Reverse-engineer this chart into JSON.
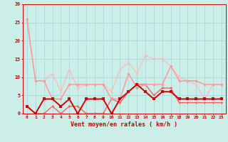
{
  "x": [
    0,
    1,
    2,
    3,
    4,
    5,
    6,
    7,
    8,
    9,
    10,
    11,
    12,
    13,
    14,
    15,
    16,
    17,
    18,
    19,
    20,
    21,
    22,
    23
  ],
  "line1_y": [
    26,
    9,
    9,
    4,
    4,
    8,
    8,
    8,
    8,
    8,
    4,
    4,
    11,
    7,
    8,
    8,
    8,
    13,
    9,
    9,
    9,
    8,
    8,
    8
  ],
  "line2_y": [
    2,
    0,
    4,
    4,
    2,
    4,
    0,
    4,
    4,
    4,
    0,
    4,
    6,
    8,
    6,
    4,
    6,
    6,
    4,
    4,
    4,
    4,
    4,
    4
  ],
  "line3_y": [
    25,
    9,
    9,
    11,
    6,
    12,
    7,
    8,
    8,
    8,
    6,
    12,
    14,
    11,
    16,
    15,
    15,
    13,
    10,
    9,
    8,
    4,
    8,
    8
  ],
  "line4_y": [
    2,
    0,
    0,
    2,
    0,
    2,
    2,
    0,
    0,
    0,
    4,
    3,
    6,
    8,
    8,
    5,
    7,
    7,
    3,
    3,
    3,
    3,
    3,
    3
  ],
  "bg_color": "#cceee8",
  "grid_color": "#aadddd",
  "line1_color": "#ff9999",
  "line2_color": "#cc0000",
  "line3_color": "#ffbbbb",
  "line4_color": "#ff5555",
  "xlabel": "Vent moyen/en rafales ( km/h )",
  "ylim": [
    0,
    30
  ],
  "xlim": [
    -0.5,
    23.5
  ],
  "yticks": [
    0,
    5,
    10,
    15,
    20,
    25,
    30
  ],
  "xticks": [
    0,
    1,
    2,
    3,
    4,
    5,
    6,
    7,
    8,
    9,
    10,
    11,
    12,
    13,
    14,
    15,
    16,
    17,
    18,
    19,
    20,
    21,
    22,
    23
  ]
}
